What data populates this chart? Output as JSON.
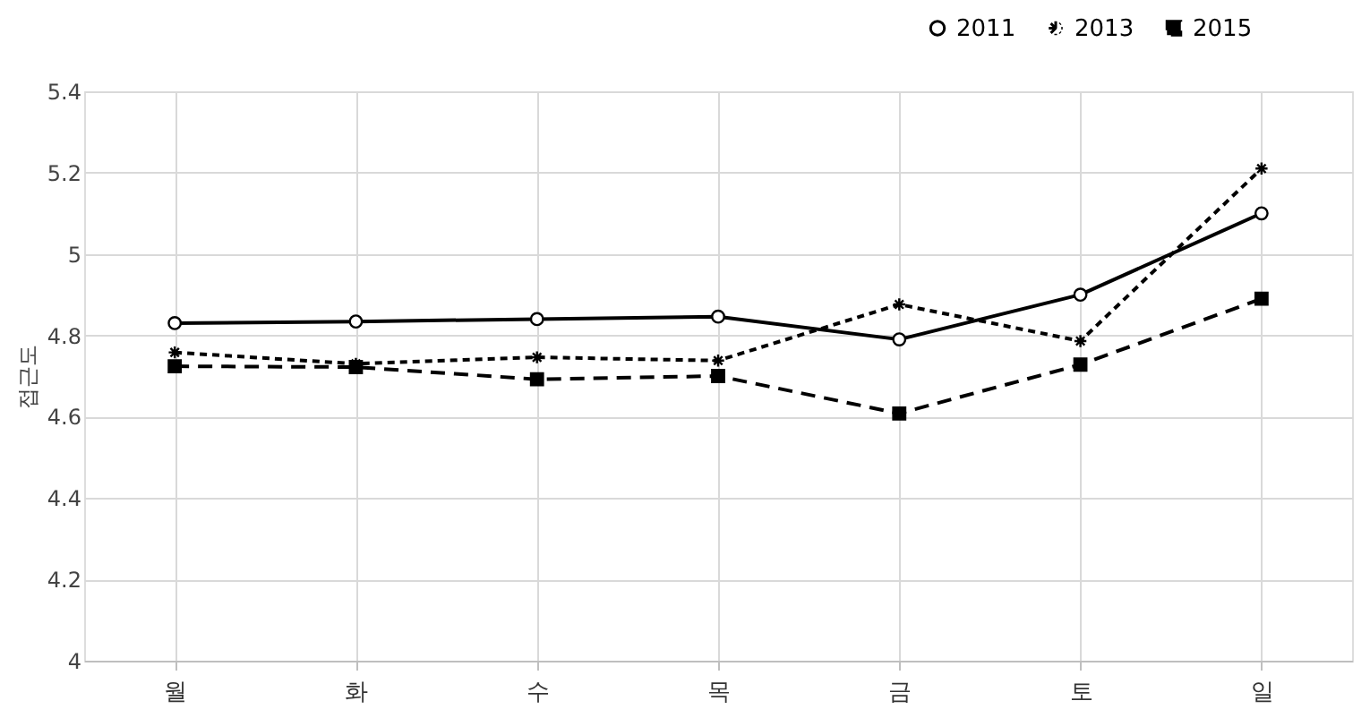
{
  "chart_data": {
    "type": "line",
    "ylabel": "접근도",
    "categories": [
      "월",
      "화",
      "수",
      "목",
      "금",
      "토",
      "일"
    ],
    "ylim": [
      4,
      5.4
    ],
    "yticks": [
      4,
      4.2,
      4.4,
      4.6,
      4.8,
      5,
      5.2,
      5.4
    ],
    "grid": true,
    "legend": "top right",
    "series": [
      {
        "name": "2011",
        "color": "#000000",
        "marker": "circle",
        "line_style": "solid",
        "values": [
          4.83,
          4.834,
          4.84,
          4.846,
          4.79,
          4.9,
          5.1
        ]
      },
      {
        "name": "2013",
        "color": "#000000",
        "marker": "cross",
        "line_style": "dotted",
        "values": [
          4.758,
          4.73,
          4.746,
          4.738,
          4.876,
          4.786,
          5.21
        ]
      },
      {
        "name": "2015",
        "color": "#000000",
        "marker": "square",
        "line_style": "dashed",
        "values": [
          4.724,
          4.722,
          4.692,
          4.7,
          4.608,
          4.728,
          4.89
        ]
      }
    ]
  }
}
